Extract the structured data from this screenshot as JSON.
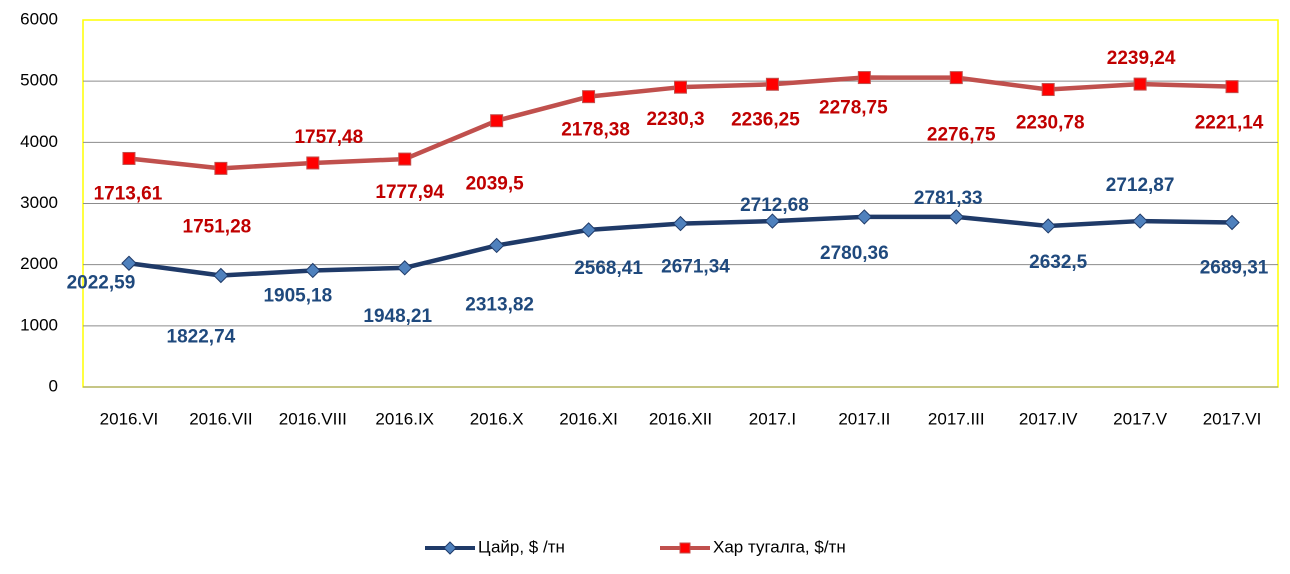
{
  "chart_data": {
    "type": "line",
    "stacked": true,
    "categories": [
      "2016.VI",
      "2016.VII",
      "2016.VIII",
      "2016.IX",
      "2016.X",
      "2016.XI",
      "2016.XII",
      "2017.I",
      "2017.II",
      "2017.III",
      "2017.IV",
      "2017.V",
      "2017.VI"
    ],
    "series": [
      {
        "name": "Цайр, $ /тн",
        "color": "#1f3a68",
        "marker_color": "#4f81bd",
        "label_color": "#1f497d",
        "marker": "diamond",
        "values": [
          2022.59,
          1822.74,
          1905.18,
          1948.21,
          2313.82,
          2568.41,
          2671.34,
          2712.68,
          2780.36,
          2781.33,
          2632.5,
          2712.87,
          2689.31
        ],
        "value_labels": [
          "2022,59",
          "1822,74",
          "1905,18",
          "1948,21",
          "2313,82",
          "2568,41",
          "2671,34",
          "2712,68",
          "2780,36",
          "2781,33",
          "2632,5",
          "2712,87",
          "2689,31"
        ]
      },
      {
        "name": "Хар тугалга, $/тн",
        "color": "#c0504d",
        "marker_color": "#ff0000",
        "label_color": "#c00000",
        "marker": "square",
        "values": [
          1713.61,
          1751.28,
          1757.48,
          1777.94,
          2039.5,
          2178.38,
          2230.3,
          2236.25,
          2278.75,
          2276.75,
          2230.78,
          2239.24,
          2221.14
        ],
        "value_labels": [
          "1713,61",
          "1751,28",
          "1757,48",
          "1777,94",
          "2039,5",
          "2178,38",
          "2230,3",
          "2236,25",
          "2278,75",
          "2276,75",
          "2230,78",
          "2239,24",
          "2221,14"
        ]
      }
    ],
    "ylim": [
      0,
      6000
    ],
    "yticks": [
      0,
      1000,
      2000,
      3000,
      4000,
      5000,
      6000
    ],
    "grid": true,
    "legend": "bottom"
  }
}
